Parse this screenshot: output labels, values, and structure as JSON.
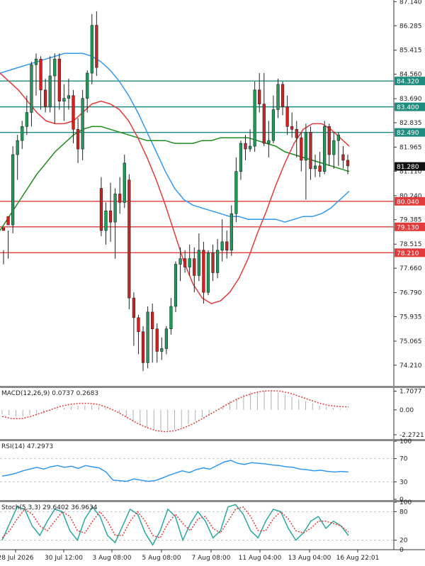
{
  "chart_data": {
    "type": "candlestick",
    "main": {
      "ylim": [
        73.5,
        87.2
      ],
      "y_ticks": [
        "87.140",
        "86.285",
        "85.415",
        "84.560",
        "83.690",
        "82.835",
        "81.965",
        "81.110",
        "80.240",
        "79.385",
        "78.515",
        "77.660",
        "76.790",
        "75.935",
        "75.065",
        "74.210"
      ],
      "current_price": "81.280",
      "levels": [
        {
          "value": 84.32,
          "label": "84.320",
          "color": "#1e8c7e"
        },
        {
          "value": 83.4,
          "label": "83.400",
          "color": "#1e8c7e"
        },
        {
          "value": 82.49,
          "label": "82.490",
          "color": "#1e8c7e"
        },
        {
          "value": 80.04,
          "label": "80.040",
          "color": "#e33b3b"
        },
        {
          "value": 79.13,
          "label": "79.130",
          "color": "#e33b3b"
        },
        {
          "value": 78.21,
          "label": "78.210",
          "color": "#e33b3b"
        }
      ],
      "candles": [
        [
          79.1,
          79.0,
          78.3,
          77.8
        ],
        [
          79.5,
          79.2,
          79.0,
          78.0
        ],
        [
          79.2,
          81.7,
          82.0,
          78.9
        ],
        [
          81.7,
          82.2,
          82.4,
          80.8
        ],
        [
          82.2,
          82.7,
          82.9,
          81.9
        ],
        [
          82.7,
          83.2,
          83.8,
          82.4
        ],
        [
          83.2,
          84.9,
          85.0,
          82.7
        ],
        [
          84.9,
          85.1,
          85.3,
          83.8
        ],
        [
          85.1,
          84.0,
          85.2,
          83.3
        ],
        [
          84.0,
          83.4,
          84.4,
          83.2
        ],
        [
          83.4,
          84.5,
          85.2,
          83.2
        ],
        [
          84.5,
          85.1,
          85.3,
          82.8
        ],
        [
          85.1,
          83.6,
          85.3,
          83.3
        ],
        [
          83.6,
          83.7,
          84.2,
          82.9
        ],
        [
          83.7,
          83.8,
          84.4,
          83.3
        ],
        [
          83.8,
          82.6,
          84.0,
          82.1
        ],
        [
          82.6,
          81.9,
          83.0,
          81.4
        ],
        [
          81.9,
          83.7,
          84.0,
          81.5
        ],
        [
          83.7,
          84.6,
          84.7,
          83.2
        ],
        [
          84.6,
          86.3,
          86.7,
          84.2
        ],
        [
          86.3,
          84.8,
          86.8,
          84.5
        ],
        [
          80.5,
          79.0,
          80.9,
          78.8
        ],
        [
          79.0,
          79.7,
          80.0,
          78.5
        ],
        [
          79.7,
          79.3,
          80.7,
          78.6
        ],
        [
          79.3,
          80.3,
          80.5,
          78.0
        ],
        [
          80.3,
          80.0,
          80.9,
          79.6
        ],
        [
          80.0,
          81.4,
          81.7,
          79.8
        ],
        [
          80.8,
          76.6,
          81.0,
          76.2
        ],
        [
          76.6,
          75.9,
          76.8,
          74.9
        ],
        [
          75.9,
          75.4,
          76.0,
          74.6
        ],
        [
          75.4,
          74.3,
          75.6,
          74.0
        ],
        [
          74.3,
          76.1,
          76.3,
          74.1
        ],
        [
          76.1,
          75.5,
          76.4,
          74.3
        ],
        [
          75.5,
          74.7,
          75.7,
          74.3
        ],
        [
          74.7,
          74.8,
          75.2,
          74.4
        ],
        [
          74.8,
          75.5,
          75.6,
          74.6
        ],
        [
          75.5,
          76.3,
          76.6,
          75.3
        ],
        [
          76.3,
          77.8,
          77.9,
          76.1
        ],
        [
          77.8,
          78.0,
          78.4,
          77.2
        ],
        [
          78.0,
          77.7,
          78.3,
          77.5
        ],
        [
          77.7,
          78.0,
          78.5,
          77.4
        ],
        [
          78.0,
          77.4,
          78.4,
          76.8
        ],
        [
          77.4,
          78.3,
          78.9,
          77.2
        ],
        [
          78.3,
          76.8,
          78.6,
          76.4
        ],
        [
          76.8,
          78.2,
          78.3,
          76.7
        ],
        [
          78.2,
          77.5,
          78.5,
          77.2
        ],
        [
          77.5,
          78.3,
          78.7,
          77.3
        ],
        [
          78.3,
          78.6,
          79.4,
          77.9
        ],
        [
          78.6,
          78.3,
          79.0,
          78.0
        ],
        [
          78.3,
          79.6,
          79.9,
          78.1
        ],
        [
          79.6,
          81.1,
          81.6,
          79.3
        ],
        [
          81.1,
          82.1,
          82.2,
          80.8
        ],
        [
          82.1,
          81.9,
          82.4,
          81.5
        ],
        [
          81.9,
          82.0,
          82.6,
          81.8
        ],
        [
          82.0,
          84.0,
          84.3,
          81.8
        ],
        [
          84.0,
          83.5,
          84.6,
          83.2
        ],
        [
          83.5,
          82.1,
          84.6,
          82.0
        ],
        [
          82.1,
          82.2,
          82.9,
          81.6
        ],
        [
          82.2,
          83.3,
          83.8,
          82.1
        ],
        [
          83.3,
          84.2,
          84.4,
          83.0
        ],
        [
          84.2,
          83.4,
          84.3,
          83.1
        ],
        [
          83.4,
          82.7,
          83.8,
          82.4
        ],
        [
          82.7,
          82.6,
          83.2,
          82.3
        ],
        [
          82.6,
          82.3,
          82.9,
          81.6
        ],
        [
          82.3,
          81.5,
          82.5,
          81.1
        ],
        [
          81.5,
          82.5,
          82.8,
          80.1
        ],
        [
          82.5,
          81.2,
          82.7,
          80.8
        ],
        [
          81.2,
          81.3,
          81.7,
          80.9
        ],
        [
          81.3,
          81.1,
          81.8,
          80.9
        ],
        [
          81.1,
          82.7,
          82.9,
          81.0
        ],
        [
          82.7,
          81.7,
          82.8,
          81.3
        ],
        [
          81.7,
          82.2,
          82.5,
          81.2
        ],
        [
          82.2,
          82.4,
          82.5,
          81.3
        ],
        [
          81.7,
          81.5,
          82.0,
          81.2
        ],
        [
          81.5,
          81.3,
          81.7,
          81.0
        ]
      ],
      "ma_red": [
        84.6,
        84.3,
        84.0,
        83.6,
        83.2,
        82.9,
        82.8,
        82.8,
        82.9,
        83.2,
        83.5,
        83.6,
        83.5,
        83.3,
        82.9,
        82.3,
        81.6,
        80.8,
        79.9,
        78.9,
        77.9,
        77.1,
        76.6,
        76.4,
        76.5,
        76.8,
        77.3,
        78.0,
        78.9,
        79.7,
        80.6,
        81.4,
        82.1,
        82.6,
        82.8,
        82.8,
        82.6,
        82.3,
        82.0
      ],
      "ma_blue": [
        84.6,
        84.7,
        84.8,
        84.9,
        85.0,
        85.1,
        85.2,
        85.3,
        85.3,
        85.3,
        85.2,
        85.0,
        84.7,
        84.3,
        83.8,
        83.2,
        82.5,
        81.8,
        81.1,
        80.5,
        80.1,
        79.9,
        79.8,
        79.7,
        79.6,
        79.5,
        79.5,
        79.4,
        79.4,
        79.4,
        79.4,
        79.3,
        79.4,
        79.5,
        79.5,
        79.6,
        79.8,
        80.1,
        80.4
      ],
      "ma_green": [
        79.0,
        79.5,
        80.0,
        80.5,
        81.0,
        81.4,
        81.8,
        82.1,
        82.4,
        82.6,
        82.7,
        82.7,
        82.6,
        82.5,
        82.4,
        82.3,
        82.2,
        82.2,
        82.2,
        82.1,
        82.1,
        82.1,
        82.2,
        82.2,
        82.3,
        82.3,
        82.3,
        82.3,
        82.2,
        82.1,
        82.0,
        81.8,
        81.7,
        81.6,
        81.5,
        81.4,
        81.3,
        81.2,
        81.1
      ]
    },
    "macd": {
      "label": "MACD(12,26,9) 0.0737 0.2683",
      "ylim": [
        -2.6,
        2.0
      ],
      "y_ticks": [
        "1.7077",
        "0.00",
        "-2.2721"
      ],
      "histogram": [
        -0.4,
        -0.5,
        -0.6,
        -0.6,
        -0.5,
        -0.4,
        -0.3,
        -0.1,
        0.1,
        0.2,
        0.3,
        0.4,
        0.4,
        0.4,
        0.3,
        0.2,
        0.0,
        -0.3,
        -0.7,
        -1.1,
        -1.4,
        -1.6,
        -1.8,
        -1.9,
        -1.9,
        -1.8,
        -1.6,
        -1.3,
        -1.0,
        -0.7,
        -0.4,
        0.0,
        0.4,
        0.8,
        1.1,
        1.4,
        1.6,
        1.7,
        1.75,
        1.7,
        1.6,
        1.4,
        1.2,
        1.0,
        0.8,
        0.6,
        0.4,
        0.3,
        0.2,
        0.1,
        0.07
      ],
      "signal": [
        -0.6,
        -0.8,
        -0.8,
        -0.6,
        -0.3,
        0.0,
        0.3,
        0.5,
        0.6,
        0.6,
        0.5,
        0.2,
        -0.2,
        -0.7,
        -1.2,
        -1.6,
        -1.9,
        -2.0,
        -1.9,
        -1.6,
        -1.2,
        -0.7,
        -0.2,
        0.3,
        0.8,
        1.2,
        1.5,
        1.7,
        1.75,
        1.7,
        1.5,
        1.2,
        0.9,
        0.6,
        0.4,
        0.3,
        0.27
      ]
    },
    "rsi": {
      "label": "RSI(14) 47.2973",
      "ylim": [
        0,
        100
      ],
      "y_ticks": [
        "100",
        "70",
        "30",
        "0"
      ],
      "values": [
        40,
        42,
        45,
        49,
        52,
        55,
        52,
        56,
        58,
        55,
        57,
        53,
        58,
        56,
        54,
        47,
        33,
        32,
        31,
        35,
        33,
        31,
        32,
        36,
        41,
        45,
        49,
        46,
        51,
        54,
        52,
        58,
        64,
        67,
        62,
        60,
        63,
        62,
        61,
        59,
        58,
        56,
        55,
        52,
        51,
        49,
        50,
        48,
        47,
        48,
        47
      ]
    },
    "stoch": {
      "label": "Stoch(5,3,3) 29.6402 36.9634",
      "ylim": [
        0,
        100
      ],
      "y_ticks": [
        "100",
        "80",
        "20",
        "0"
      ],
      "main_line": [
        20,
        55,
        90,
        85,
        50,
        30,
        60,
        85,
        80,
        40,
        20,
        65,
        90,
        70,
        30,
        15,
        50,
        85,
        75,
        35,
        10,
        40,
        85,
        70,
        20,
        55,
        80,
        60,
        25,
        40,
        90,
        95,
        75,
        40,
        25,
        60,
        85,
        80,
        45,
        20,
        35,
        60,
        70,
        45,
        60,
        50,
        30
      ],
      "signal_line": [
        25,
        40,
        65,
        85,
        75,
        50,
        40,
        60,
        80,
        70,
        40,
        35,
        60,
        80,
        60,
        30,
        30,
        60,
        80,
        60,
        30,
        25,
        55,
        75,
        55,
        40,
        65,
        70,
        45,
        35,
        60,
        85,
        90,
        70,
        40,
        40,
        65,
        80,
        65,
        40,
        35,
        45,
        60,
        60,
        55,
        50,
        37
      ]
    },
    "x_labels": [
      "28 Jul 2026",
      "30 Jul 12:00",
      "3 Aug 08:00",
      "5 Aug 08:00",
      "7 Aug 08:00",
      "11 Aug 04:00",
      "13 Aug 04:00",
      "16 Aug 22:01"
    ]
  }
}
